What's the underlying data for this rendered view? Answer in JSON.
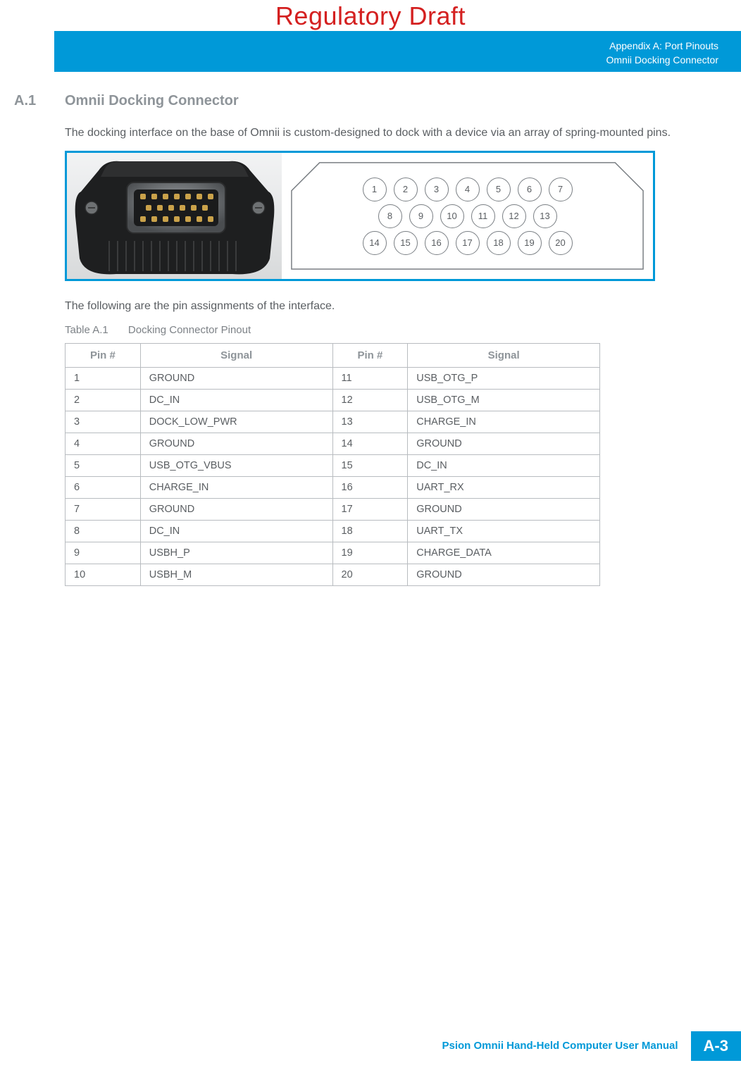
{
  "draft_banner": "Regulatory Draft",
  "header": {
    "line1": "Appendix A: Port Pinouts",
    "line2": "Omnii Docking Connector"
  },
  "section": {
    "number": "A.1",
    "title": "Omnii Docking Connector",
    "intro": "The docking interface on the base of Omnii is custom-designed to dock with a device via an array of spring-mounted pins.",
    "after_figure": "The following are the pin assignments of the interface."
  },
  "diagram": {
    "pin_layout": [
      [
        1,
        2,
        3,
        4,
        5,
        6,
        7
      ],
      [
        8,
        9,
        10,
        11,
        12,
        13
      ],
      [
        14,
        15,
        16,
        17,
        18,
        19,
        20
      ]
    ],
    "circle_stroke": "#7a7f84",
    "outline_stroke": "#7a7f84",
    "text_color": "#5a5e62"
  },
  "table": {
    "caption_label": "Table A.1",
    "caption_title": "Docking Connector Pinout",
    "columns": [
      "Pin #",
      "Signal",
      "Pin #",
      "Signal"
    ],
    "rows": [
      [
        "1",
        "GROUND",
        "11",
        "USB_OTG_P"
      ],
      [
        "2",
        "DC_IN",
        "12",
        "USB_OTG_M"
      ],
      [
        "3",
        "DOCK_LOW_PWR",
        "13",
        "CHARGE_IN"
      ],
      [
        "4",
        "GROUND",
        "14",
        "GROUND"
      ],
      [
        "5",
        "USB_OTG_VBUS",
        "15",
        "DC_IN"
      ],
      [
        "6",
        "CHARGE_IN",
        "16",
        "UART_RX"
      ],
      [
        "7",
        "GROUND",
        "17",
        "GROUND"
      ],
      [
        "8",
        "DC_IN",
        "18",
        "UART_TX"
      ],
      [
        "9",
        "USBH_P",
        "19",
        "CHARGE_DATA"
      ],
      [
        "10",
        "USBH_M",
        "20",
        "GROUND"
      ]
    ],
    "border_color": "#b8bcc0",
    "header_color": "#8e9499",
    "text_color": "#5a5e62"
  },
  "footer": {
    "text": "Psion Omnii Hand-Held Computer User Manual",
    "page": "A-3"
  },
  "colors": {
    "accent": "#0099d8",
    "draft_red": "#d42020",
    "grey_heading": "#8e9499",
    "body_text": "#5a5e62"
  }
}
